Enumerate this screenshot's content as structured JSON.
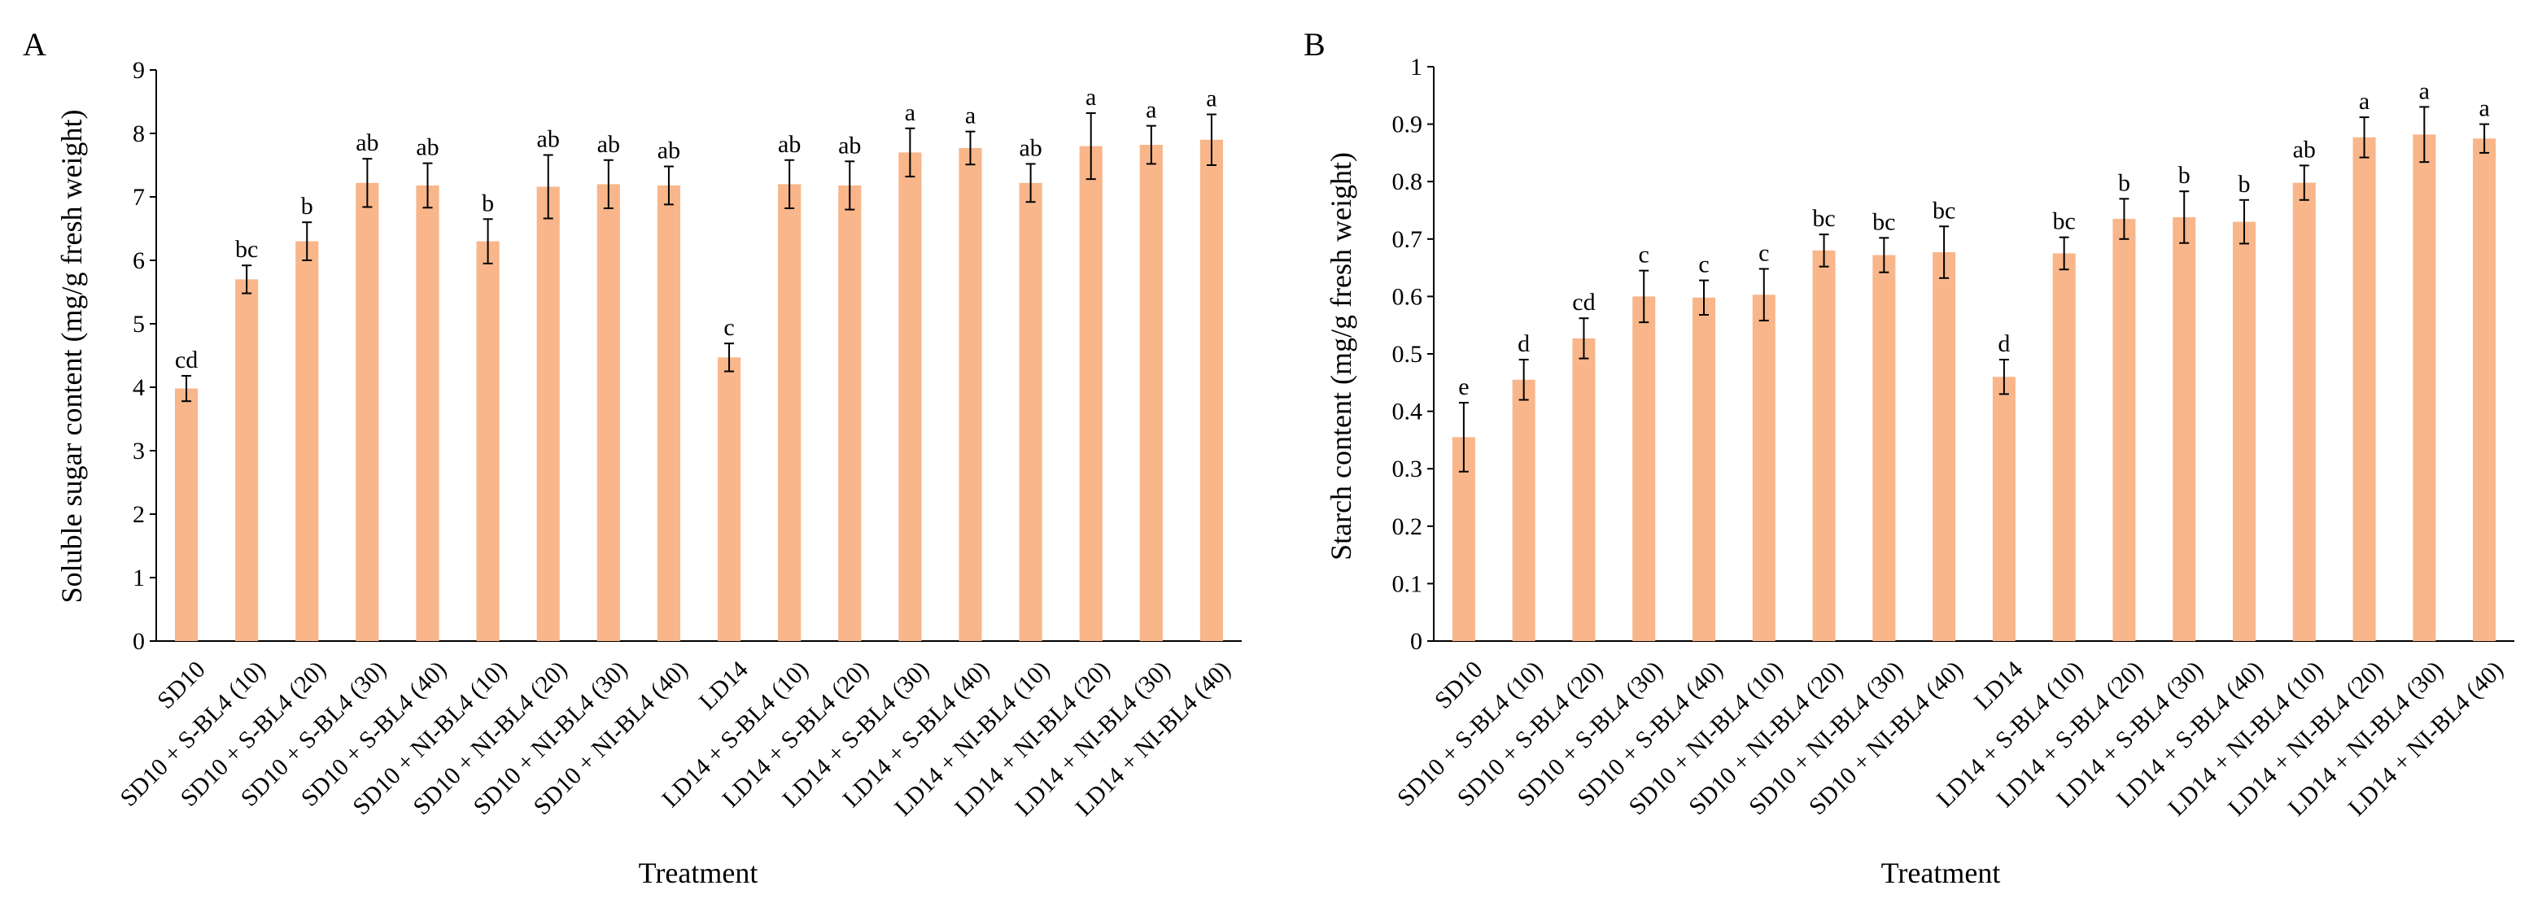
{
  "bar_color": "#F8B68A",
  "error_color": "#000000",
  "chart_data": [
    {
      "type": "bar",
      "panel": "A",
      "title": "",
      "xlabel": "Treatment",
      "ylabel": "Soluble sugar content (mg/g fresh weight)",
      "ylim": [
        0,
        9
      ],
      "yticks": [
        0,
        1,
        2,
        3,
        4,
        5,
        6,
        7,
        8,
        9
      ],
      "ytick_labels": [
        "0",
        "1",
        "2",
        "3",
        "4",
        "5",
        "6",
        "7",
        "8",
        "9"
      ],
      "categories": [
        "SD10",
        "SD10 + S-BL4 (10)",
        "SD10 + S-BL4 (20)",
        "SD10 + S-BL4 (30)",
        "SD10 + S-BL4 (40)",
        "SD10 + NI-BL4 (10)",
        "SD10 + NI-BL4 (20)",
        "SD10 + NI-BL4 (30)",
        "SD10 + NI-BL4 (40)",
        "LD14",
        "LD14 + S-BL4 (10)",
        "LD14 + S-BL4 (20)",
        "LD14 + S-BL4 (30)",
        "LD14 + S-BL4 (40)",
        "LD14 + NI-BL4 (10)",
        "LD14 + NI-BL4 (20)",
        "LD14 + NI-BL4 (30)",
        "LD14 + NI-BL4 (40)"
      ],
      "values": [
        3.98,
        5.7,
        6.3,
        7.22,
        7.18,
        6.3,
        7.16,
        7.2,
        7.18,
        4.47,
        7.2,
        7.18,
        7.7,
        7.77,
        7.22,
        7.8,
        7.82,
        7.9
      ],
      "errors": [
        0.2,
        0.22,
        0.3,
        0.38,
        0.35,
        0.35,
        0.5,
        0.38,
        0.3,
        0.22,
        0.38,
        0.38,
        0.38,
        0.26,
        0.3,
        0.52,
        0.3,
        0.4
      ],
      "letters": [
        "cd",
        "bc",
        "b",
        "ab",
        "ab",
        "b",
        "ab",
        "ab",
        "ab",
        "c",
        "ab",
        "ab",
        "a",
        "a",
        "ab",
        "a",
        "a",
        "a"
      ]
    },
    {
      "type": "bar",
      "panel": "B",
      "title": "",
      "xlabel": "Treatment",
      "ylabel": "Starch content (mg/g fresh weight)",
      "ylim": [
        0,
        1
      ],
      "yticks": [
        0,
        0.1,
        0.2,
        0.3,
        0.4,
        0.5,
        0.6,
        0.7,
        0.8,
        0.9,
        1
      ],
      "ytick_labels": [
        "0",
        "0.1",
        "0.2",
        "0.3",
        "0.4",
        "0.5",
        "0.6",
        "0.7",
        "0.8",
        "0.9",
        "1"
      ],
      "categories": [
        "SD10",
        "SD10 + S-BL4 (10)",
        "SD10 + S-BL4 (20)",
        "SD10 + S-BL4 (30)",
        "SD10 + S-BL4 (40)",
        "SD10 + NI-BL4 (10)",
        "SD10 + NI-BL4 (20)",
        "SD10 + NI-BL4 (30)",
        "SD10 + NI-BL4 (40)",
        "LD14",
        "LD14 + S-BL4 (10)",
        "LD14 + S-BL4 (20)",
        "LD14 + S-BL4 (30)",
        "LD14 + S-BL4 (40)",
        "LD14 + NI-BL4 (10)",
        "LD14 + NI-BL4 (20)",
        "LD14 + NI-BL4 (30)",
        "LD14 + NI-BL4 (40)"
      ],
      "values": [
        0.355,
        0.455,
        0.527,
        0.6,
        0.598,
        0.603,
        0.68,
        0.672,
        0.677,
        0.46,
        0.675,
        0.735,
        0.738,
        0.73,
        0.798,
        0.877,
        0.882,
        0.875
      ],
      "errors": [
        0.06,
        0.035,
        0.035,
        0.045,
        0.03,
        0.045,
        0.028,
        0.03,
        0.045,
        0.03,
        0.028,
        0.035,
        0.045,
        0.038,
        0.03,
        0.035,
        0.048,
        0.025
      ],
      "letters": [
        "e",
        "d",
        "cd",
        "c",
        "c",
        "c",
        "bc",
        "bc",
        "bc",
        "d",
        "bc",
        "b",
        "b",
        "b",
        "ab",
        "a",
        "a",
        "a"
      ]
    }
  ]
}
